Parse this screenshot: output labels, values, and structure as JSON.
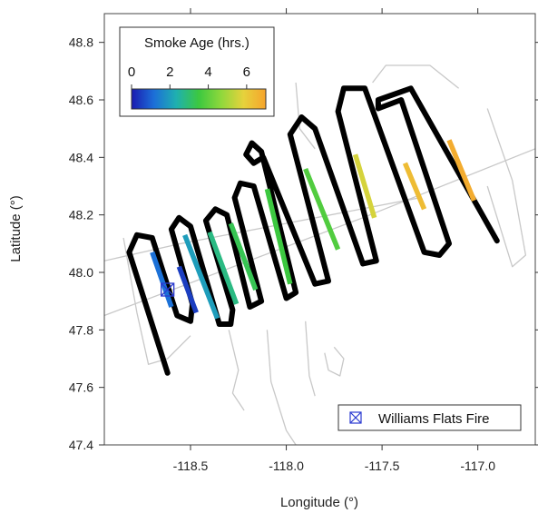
{
  "chart_data": {
    "type": "map-track",
    "xlabel": "Longitude (°)",
    "ylabel": "Latitude (°)",
    "xlim": [
      -118.95,
      -116.7
    ],
    "ylim": [
      47.4,
      48.9
    ],
    "xticks": [
      -118.5,
      -118.0,
      -117.5,
      -117.0
    ],
    "xtick_labels": [
      "-118.5",
      "-118.0",
      "-117.5",
      "-117.0"
    ],
    "yticks": [
      47.4,
      47.6,
      47.8,
      48.0,
      48.2,
      48.4,
      48.6,
      48.8
    ],
    "ytick_labels": [
      "47.4",
      "47.6",
      "47.8",
      "48.0",
      "48.2",
      "48.4",
      "48.6",
      "48.8"
    ],
    "grid": false,
    "colorbar": {
      "title": "Smoke Age (hrs.)",
      "range": [
        0,
        7
      ],
      "ticks": [
        0,
        2,
        4,
        6
      ],
      "tick_labels": [
        "0",
        "2",
        "4",
        "6"
      ],
      "colors": [
        "#1a1ab0",
        "#1c6fd8",
        "#1fb0b0",
        "#3cc840",
        "#8fd83c",
        "#e6d23c",
        "#f6a42c"
      ]
    },
    "legend": {
      "position": "bottom-right",
      "label": "Williams Flats Fire",
      "marker": "boxed-x"
    },
    "fire_location": {
      "lon": -118.62,
      "lat": 47.94
    },
    "flight_track": [
      [
        -118.62,
        47.65
      ],
      [
        -118.82,
        48.07
      ],
      [
        -118.78,
        48.13
      ],
      [
        -118.7,
        48.12
      ],
      [
        -118.57,
        47.85
      ],
      [
        -118.5,
        47.83
      ],
      [
        -118.49,
        47.89
      ],
      [
        -118.6,
        48.15
      ],
      [
        -118.56,
        48.19
      ],
      [
        -118.5,
        48.16
      ],
      [
        -118.35,
        47.82
      ],
      [
        -118.29,
        47.82
      ],
      [
        -118.28,
        47.87
      ],
      [
        -118.42,
        48.18
      ],
      [
        -118.37,
        48.22
      ],
      [
        -118.31,
        48.2
      ],
      [
        -118.19,
        47.88
      ],
      [
        -118.13,
        47.9
      ],
      [
        -118.27,
        48.26
      ],
      [
        -118.24,
        48.31
      ],
      [
        -118.17,
        48.3
      ],
      [
        -118.0,
        47.91
      ],
      [
        -117.95,
        47.93
      ],
      [
        -118.13,
        48.42
      ],
      [
        -118.18,
        48.45
      ],
      [
        -118.21,
        48.41
      ],
      [
        -118.17,
        48.38
      ],
      [
        -118.12,
        48.4
      ],
      [
        -117.85,
        47.96
      ],
      [
        -117.78,
        47.97
      ],
      [
        -117.98,
        48.48
      ],
      [
        -117.92,
        48.54
      ],
      [
        -117.85,
        48.5
      ],
      [
        -117.6,
        48.03
      ],
      [
        -117.53,
        48.04
      ],
      [
        -117.73,
        48.56
      ],
      [
        -117.7,
        48.64
      ],
      [
        -117.59,
        48.64
      ],
      [
        -117.28,
        48.07
      ],
      [
        -117.2,
        48.06
      ],
      [
        -117.15,
        48.1
      ],
      [
        -117.4,
        48.6
      ],
      [
        -117.52,
        48.57
      ],
      [
        -117.52,
        48.6
      ],
      [
        -117.35,
        48.64
      ],
      [
        -116.9,
        48.11
      ]
    ],
    "colored_segments": [
      {
        "smoke_age_hrs": 1.2,
        "from": [
          -118.7,
          48.07
        ],
        "to": [
          -118.6,
          47.88
        ]
      },
      {
        "smoke_age_hrs": 0.5,
        "from": [
          -118.56,
          48.02
        ],
        "to": [
          -118.47,
          47.86
        ]
      },
      {
        "smoke_age_hrs": 2.0,
        "from": [
          -118.53,
          48.13
        ],
        "to": [
          -118.36,
          47.84
        ]
      },
      {
        "smoke_age_hrs": 2.8,
        "from": [
          -118.4,
          48.14
        ],
        "to": [
          -118.26,
          47.89
        ]
      },
      {
        "smoke_age_hrs": 3.3,
        "from": [
          -118.29,
          48.17
        ],
        "to": [
          -118.16,
          47.94
        ]
      },
      {
        "smoke_age_hrs": 3.5,
        "from": [
          -118.1,
          48.29
        ],
        "to": [
          -117.98,
          47.96
        ]
      },
      {
        "smoke_age_hrs": 3.8,
        "from": [
          -117.9,
          48.36
        ],
        "to": [
          -117.73,
          48.08
        ]
      },
      {
        "smoke_age_hrs": 5.6,
        "from": [
          -117.64,
          48.41
        ],
        "to": [
          -117.54,
          48.19
        ]
      },
      {
        "smoke_age_hrs": 6.4,
        "from": [
          -117.38,
          48.38
        ],
        "to": [
          -117.28,
          48.22
        ]
      },
      {
        "smoke_age_hrs": 6.8,
        "from": [
          -117.15,
          48.46
        ],
        "to": [
          -117.02,
          48.25
        ]
      }
    ],
    "background_tracks": [
      [
        [
          -118.95,
          47.85
        ],
        [
          -117.6,
          48.19
        ],
        [
          -116.7,
          48.43
        ]
      ],
      [
        [
          -118.95,
          48.04
        ],
        [
          -118.55,
          48.1
        ],
        [
          -117.3,
          48.26
        ]
      ],
      [
        [
          -118.85,
          48.12
        ],
        [
          -118.78,
          47.86
        ],
        [
          -118.72,
          47.68
        ],
        [
          -118.62,
          47.7
        ],
        [
          -118.5,
          47.78
        ]
      ],
      [
        [
          -118.1,
          47.8
        ],
        [
          -118.08,
          47.62
        ],
        [
          -118.0,
          47.45
        ],
        [
          -117.95,
          47.4
        ]
      ],
      [
        [
          -117.9,
          47.83
        ],
        [
          -117.88,
          47.64
        ],
        [
          -117.85,
          47.57
        ]
      ],
      [
        [
          -117.95,
          48.66
        ],
        [
          -117.93,
          48.5
        ],
        [
          -117.85,
          48.43
        ]
      ],
      [
        [
          -117.55,
          48.66
        ],
        [
          -117.48,
          48.72
        ],
        [
          -117.25,
          48.72
        ],
        [
          -117.1,
          48.64
        ]
      ],
      [
        [
          -116.95,
          48.57
        ],
        [
          -116.82,
          48.32
        ],
        [
          -116.75,
          48.06
        ],
        [
          -116.82,
          48.02
        ],
        [
          -116.95,
          48.3
        ]
      ],
      [
        [
          -117.8,
          47.72
        ],
        [
          -117.78,
          47.66
        ],
        [
          -117.72,
          47.64
        ],
        [
          -117.7,
          47.7
        ],
        [
          -117.75,
          47.74
        ]
      ],
      [
        [
          -118.3,
          47.8
        ],
        [
          -118.25,
          47.66
        ],
        [
          -118.28,
          47.58
        ],
        [
          -118.22,
          47.52
        ]
      ]
    ]
  }
}
